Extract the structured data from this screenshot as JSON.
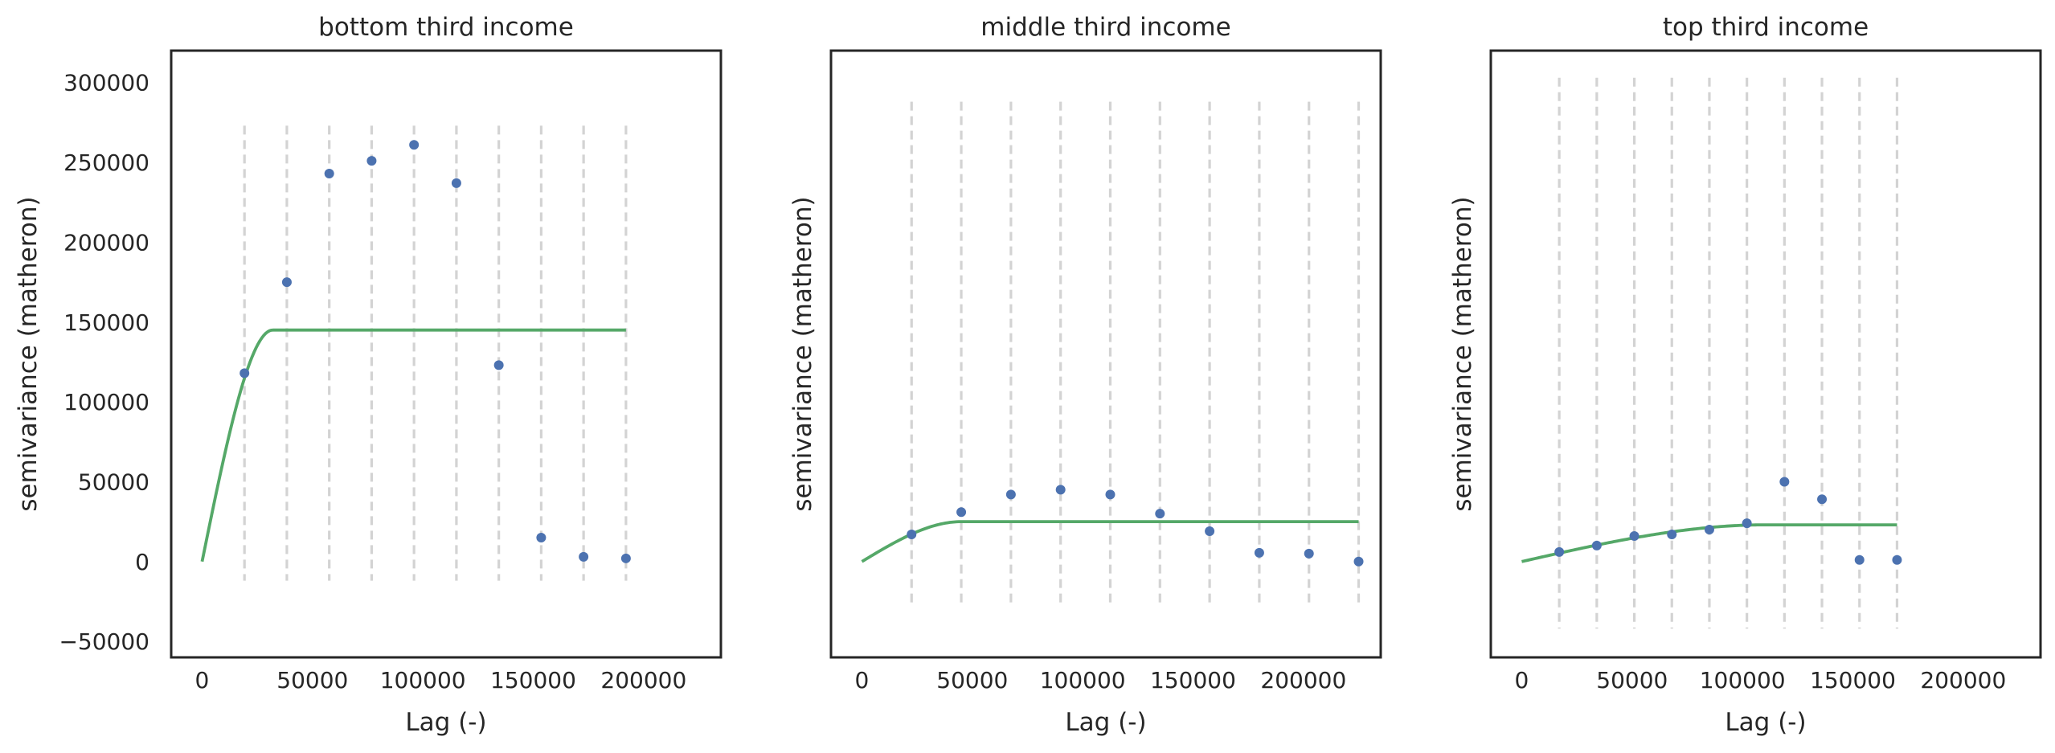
{
  "colors": {
    "points": "#4c72b0",
    "model_line": "#55a868",
    "bin_lines": "#d3d3d3",
    "frame": "#262626",
    "text": "#262626"
  },
  "chart_data": [
    {
      "type": "scatter",
      "title": "bottom third income",
      "xlabel": "Lag (-)",
      "ylabel": "semivariance (matheron)",
      "xlim": [
        -14000,
        235000
      ],
      "ylim": [
        -60000,
        320000
      ],
      "xticks": [
        0,
        50000,
        100000,
        150000,
        200000
      ],
      "yticks": [
        -50000,
        0,
        50000,
        100000,
        150000,
        200000,
        250000,
        300000
      ],
      "show_yticks": true,
      "bin_edges": [
        19200,
        38400,
        57600,
        76800,
        96000,
        115200,
        134400,
        153600,
        172800,
        192000
      ],
      "bin_line_range": [
        -12000,
        273000
      ],
      "points": {
        "x": [
          19200,
          38400,
          57600,
          76800,
          96000,
          115200,
          134400,
          153600,
          172800,
          192000
        ],
        "y": [
          118000,
          175000,
          243000,
          251000,
          261000,
          237000,
          123000,
          15000,
          3000,
          2000
        ]
      },
      "model": {
        "kind": "spherical",
        "range": 32000,
        "sill": 145000,
        "nugget": 0,
        "x_max": 192000
      }
    },
    {
      "type": "scatter",
      "title": "middle third income",
      "xlabel": "Lag (-)",
      "ylabel": "semivariance (matheron)",
      "xlim": [
        -14000,
        235000
      ],
      "ylim": [
        -60000,
        320000
      ],
      "xticks": [
        0,
        50000,
        100000,
        150000,
        200000
      ],
      "yticks": [],
      "show_yticks": false,
      "bin_edges": [
        22500,
        45000,
        67500,
        90000,
        112500,
        135000,
        157500,
        180000,
        202500,
        225000
      ],
      "bin_line_range": [
        -27000,
        288000
      ],
      "points": {
        "x": [
          22500,
          45000,
          67500,
          90000,
          112500,
          135000,
          157500,
          180000,
          202500,
          225000
        ],
        "y": [
          17000,
          31000,
          42000,
          45000,
          42000,
          30000,
          19000,
          5500,
          5000,
          0
        ]
      },
      "model": {
        "kind": "spherical",
        "range": 45000,
        "sill": 25000,
        "nugget": 0,
        "x_max": 225000
      }
    },
    {
      "type": "scatter",
      "title": "top third income",
      "xlabel": "Lag (-)",
      "ylabel": "semivariance (matheron)",
      "xlim": [
        -14000,
        235000
      ],
      "ylim": [
        -60000,
        320000
      ],
      "xticks": [
        0,
        50000,
        100000,
        150000,
        200000
      ],
      "yticks": [],
      "show_yticks": false,
      "bin_edges": [
        17000,
        34000,
        51000,
        68000,
        85000,
        102000,
        119000,
        136000,
        153000,
        170000
      ],
      "bin_line_range": [
        -42000,
        303000
      ],
      "points": {
        "x": [
          17000,
          34000,
          51000,
          68000,
          85000,
          102000,
          119000,
          136000,
          153000,
          170000
        ],
        "y": [
          6000,
          10000,
          16000,
          17000,
          20000,
          24000,
          50000,
          39000,
          1000,
          1000
        ]
      },
      "model": {
        "kind": "spherical",
        "range": 110000,
        "sill": 23000,
        "nugget": 0,
        "x_max": 170000
      }
    }
  ]
}
